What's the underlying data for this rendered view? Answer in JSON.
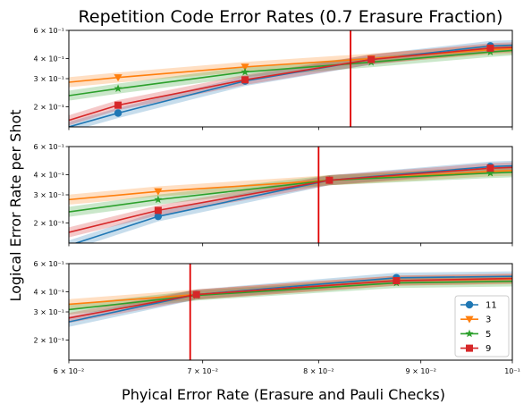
{
  "chart_data": {
    "type": "line",
    "title": "Repetition Code Error Rates (0.7 Erasure Fraction)",
    "xlabel": "Phyical Error Rate (Erasure and Pauli Checks)",
    "ylabel": "Logical Error Rate per Shot",
    "xscale": "log",
    "yscale": "log",
    "xlim": [
      0.06,
      0.1
    ],
    "ylim": [
      0.15,
      0.6
    ],
    "x_ticks": [
      {
        "value": 0.06,
        "label": "6 × 10⁻²"
      },
      {
        "value": 0.07,
        "label": "7 × 10⁻²"
      },
      {
        "value": 0.08,
        "label": "8 × 10⁻²"
      },
      {
        "value": 0.09,
        "label": "9 × 10⁻²"
      },
      {
        "value": 0.1,
        "label": "10⁻¹"
      }
    ],
    "y_ticks": [
      {
        "value": 0.2,
        "label": "2 × 10⁻¹"
      },
      {
        "value": 0.3,
        "label": "3 × 10⁻¹"
      },
      {
        "value": 0.4,
        "label": "4 × 10⁻¹"
      },
      {
        "value": 0.6,
        "label": "6 × 10⁻¹"
      }
    ],
    "legend": {
      "position": "lower-right",
      "entries": [
        "11",
        "3",
        "5",
        "9"
      ]
    },
    "series_style": [
      {
        "name": "11",
        "color": "#1f77b4",
        "marker": "circle"
      },
      {
        "name": "3",
        "color": "#ff7f0e",
        "marker": "triangle-down"
      },
      {
        "name": "5",
        "color": "#2ca02c",
        "marker": "star"
      },
      {
        "name": "9",
        "color": "#d62728",
        "marker": "square"
      }
    ],
    "threshold_color": "#e00000",
    "panels": [
      {
        "threshold_x": 0.083,
        "series": [
          {
            "name": "11",
            "x": [
              0.06,
              0.0635,
              0.0735,
              0.085,
              0.0975,
              0.1
            ],
            "y": [
              0.15,
              0.183,
              0.29,
              0.395,
              0.48,
              0.485
            ],
            "marker_x": [
              0.0635,
              0.0735,
              0.085,
              0.0975
            ]
          },
          {
            "name": "3",
            "x": [
              0.06,
              0.0635,
              0.0735,
              0.085,
              0.0975,
              0.1
            ],
            "y": [
              0.285,
              0.305,
              0.355,
              0.4,
              0.455,
              0.46
            ],
            "marker_x": [
              0.0635,
              0.0735,
              0.085,
              0.0975
            ]
          },
          {
            "name": "5",
            "x": [
              0.06,
              0.0635,
              0.0735,
              0.085,
              0.0975,
              0.1
            ],
            "y": [
              0.235,
              0.26,
              0.33,
              0.38,
              0.44,
              0.45
            ],
            "marker_x": [
              0.0635,
              0.0735,
              0.085,
              0.0975
            ]
          },
          {
            "name": "9",
            "x": [
              0.06,
              0.0635,
              0.0735,
              0.085,
              0.0975,
              0.1
            ],
            "y": [
              0.165,
              0.205,
              0.295,
              0.395,
              0.465,
              0.47
            ],
            "marker_x": [
              0.0635,
              0.0735,
              0.085,
              0.0975
            ]
          }
        ]
      },
      {
        "threshold_x": 0.08,
        "series": [
          {
            "name": "11",
            "x": [
              0.06,
              0.0665,
              0.081,
              0.0975,
              0.1
            ],
            "y": [
              0.145,
              0.22,
              0.37,
              0.45,
              0.455
            ],
            "marker_x": [
              0.0665,
              0.081,
              0.0975
            ]
          },
          {
            "name": "3",
            "x": [
              0.06,
              0.0665,
              0.081,
              0.0975,
              0.1
            ],
            "y": [
              0.28,
              0.315,
              0.37,
              0.42,
              0.425
            ],
            "marker_x": [
              0.0665,
              0.081,
              0.0975
            ]
          },
          {
            "name": "5",
            "x": [
              0.06,
              0.0665,
              0.081,
              0.0975,
              0.1
            ],
            "y": [
              0.235,
              0.28,
              0.37,
              0.41,
              0.415
            ],
            "marker_x": [
              0.0665,
              0.081,
              0.0975
            ]
          },
          {
            "name": "9",
            "x": [
              0.06,
              0.0665,
              0.081,
              0.0975,
              0.1
            ],
            "y": [
              0.175,
              0.24,
              0.37,
              0.44,
              0.445
            ],
            "marker_x": [
              0.0665,
              0.081,
              0.0975
            ]
          }
        ]
      },
      {
        "threshold_x": 0.069,
        "series": [
          {
            "name": "11",
            "x": [
              0.06,
              0.0695,
              0.0875,
              0.1
            ],
            "y": [
              0.26,
              0.385,
              0.49,
              0.5
            ],
            "marker_x": [
              0.0695,
              0.0875
            ]
          },
          {
            "name": "3",
            "x": [
              0.06,
              0.0695,
              0.0875,
              0.1
            ],
            "y": [
              0.335,
              0.385,
              0.47,
              0.48
            ],
            "marker_x": [
              0.0695,
              0.0875
            ]
          },
          {
            "name": "5",
            "x": [
              0.06,
              0.0695,
              0.0875,
              0.1
            ],
            "y": [
              0.31,
              0.38,
              0.455,
              0.465
            ],
            "marker_x": [
              0.0695,
              0.0875
            ]
          },
          {
            "name": "9",
            "x": [
              0.06,
              0.0695,
              0.0875,
              0.1
            ],
            "y": [
              0.275,
              0.385,
              0.47,
              0.485
            ],
            "marker_x": [
              0.0695,
              0.0875
            ]
          }
        ]
      }
    ]
  }
}
